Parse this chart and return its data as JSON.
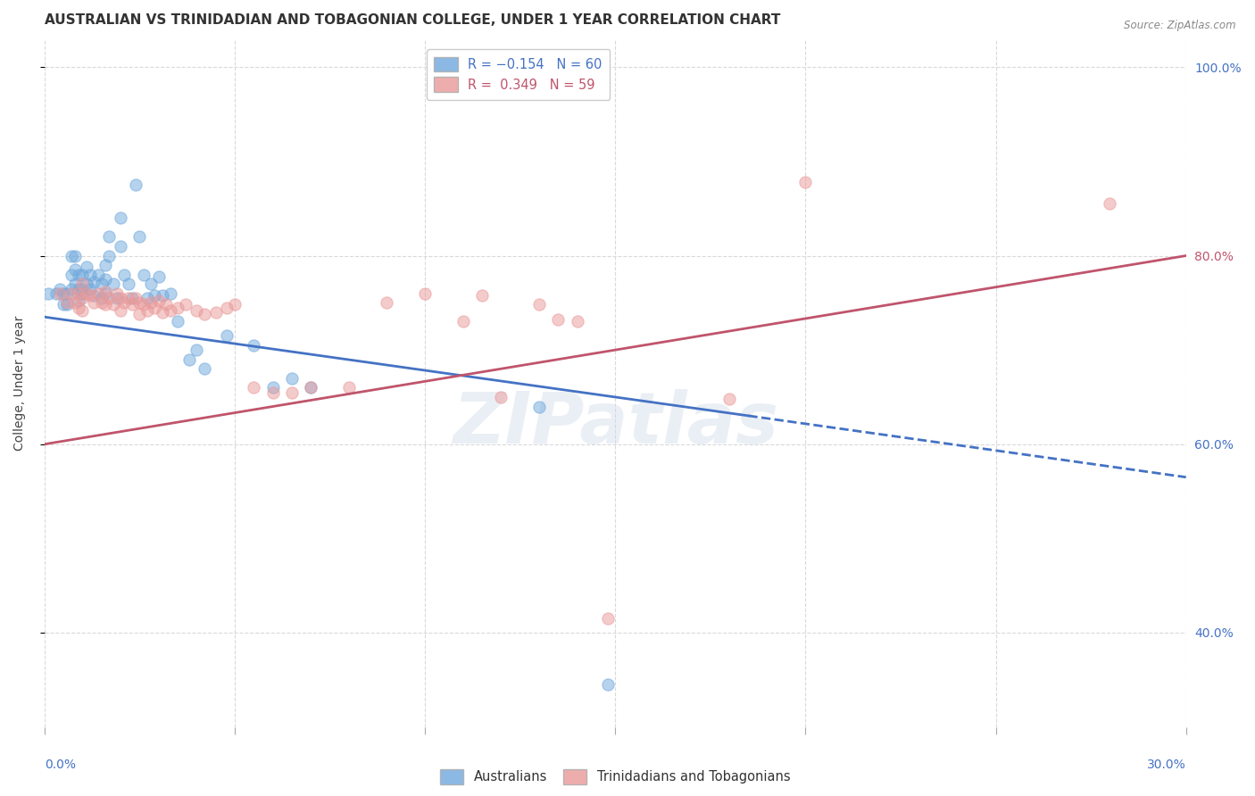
{
  "title": "AUSTRALIAN VS TRINIDADIAN AND TOBAGONIAN COLLEGE, UNDER 1 YEAR CORRELATION CHART",
  "source": "Source: ZipAtlas.com",
  "ylabel": "College, Under 1 year",
  "xlim": [
    0.0,
    0.3
  ],
  "ylim": [
    0.3,
    1.03
  ],
  "yticks": [
    0.4,
    0.6,
    0.8,
    1.0
  ],
  "ytick_labels": [
    "40.0%",
    "60.0%",
    "80.0%",
    "100.0%"
  ],
  "xtick_left_label": "0.0%",
  "xtick_right_label": "30.0%",
  "watermark": "ZIPatlas",
  "blue_color": "#6fa8dc",
  "pink_color": "#ea9999",
  "blue_trend_color": "#4472c4",
  "pink_trend_color": "#c0546c",
  "background_color": "#ffffff",
  "grid_color": "#d9d9d9",
  "title_fontsize": 11,
  "axis_label_fontsize": 10,
  "tick_fontsize": 10,
  "point_size": 90,
  "point_alpha": 0.5,
  "blue_trend_solid_end": 0.185,
  "blue_trend_y_at_0": 0.735,
  "blue_trend_y_at_30": 0.565,
  "pink_trend_y_at_0": 0.6,
  "pink_trend_y_at_30": 0.8,
  "ytick_right_colors": [
    "#4472c4",
    "#4472c4",
    "#c0546c",
    "#4472c4"
  ],
  "blue_points": [
    [
      0.001,
      0.76
    ],
    [
      0.003,
      0.76
    ],
    [
      0.004,
      0.765
    ],
    [
      0.005,
      0.76
    ],
    [
      0.005,
      0.748
    ],
    [
      0.006,
      0.76
    ],
    [
      0.006,
      0.748
    ],
    [
      0.007,
      0.8
    ],
    [
      0.007,
      0.78
    ],
    [
      0.007,
      0.765
    ],
    [
      0.008,
      0.8
    ],
    [
      0.008,
      0.785
    ],
    [
      0.008,
      0.77
    ],
    [
      0.009,
      0.78
    ],
    [
      0.009,
      0.765
    ],
    [
      0.009,
      0.752
    ],
    [
      0.01,
      0.78
    ],
    [
      0.01,
      0.765
    ],
    [
      0.01,
      0.76
    ],
    [
      0.011,
      0.788
    ],
    [
      0.011,
      0.77
    ],
    [
      0.012,
      0.78
    ],
    [
      0.012,
      0.765
    ],
    [
      0.013,
      0.772
    ],
    [
      0.013,
      0.758
    ],
    [
      0.014,
      0.78
    ],
    [
      0.015,
      0.77
    ],
    [
      0.015,
      0.755
    ],
    [
      0.016,
      0.79
    ],
    [
      0.016,
      0.775
    ],
    [
      0.016,
      0.76
    ],
    [
      0.017,
      0.82
    ],
    [
      0.017,
      0.8
    ],
    [
      0.018,
      0.77
    ],
    [
      0.019,
      0.755
    ],
    [
      0.02,
      0.84
    ],
    [
      0.02,
      0.81
    ],
    [
      0.021,
      0.78
    ],
    [
      0.022,
      0.77
    ],
    [
      0.023,
      0.755
    ],
    [
      0.024,
      0.875
    ],
    [
      0.025,
      0.82
    ],
    [
      0.026,
      0.78
    ],
    [
      0.027,
      0.755
    ],
    [
      0.028,
      0.77
    ],
    [
      0.029,
      0.758
    ],
    [
      0.03,
      0.778
    ],
    [
      0.031,
      0.758
    ],
    [
      0.033,
      0.76
    ],
    [
      0.035,
      0.73
    ],
    [
      0.038,
      0.69
    ],
    [
      0.04,
      0.7
    ],
    [
      0.042,
      0.68
    ],
    [
      0.048,
      0.715
    ],
    [
      0.055,
      0.705
    ],
    [
      0.06,
      0.66
    ],
    [
      0.065,
      0.67
    ],
    [
      0.07,
      0.66
    ],
    [
      0.13,
      0.64
    ],
    [
      0.148,
      0.345
    ]
  ],
  "pink_points": [
    [
      0.004,
      0.76
    ],
    [
      0.006,
      0.75
    ],
    [
      0.007,
      0.76
    ],
    [
      0.008,
      0.75
    ],
    [
      0.009,
      0.76
    ],
    [
      0.009,
      0.745
    ],
    [
      0.01,
      0.77
    ],
    [
      0.01,
      0.755
    ],
    [
      0.01,
      0.742
    ],
    [
      0.011,
      0.76
    ],
    [
      0.012,
      0.758
    ],
    [
      0.013,
      0.75
    ],
    [
      0.014,
      0.76
    ],
    [
      0.015,
      0.75
    ],
    [
      0.016,
      0.762
    ],
    [
      0.016,
      0.748
    ],
    [
      0.017,
      0.755
    ],
    [
      0.018,
      0.748
    ],
    [
      0.019,
      0.76
    ],
    [
      0.02,
      0.755
    ],
    [
      0.02,
      0.742
    ],
    [
      0.021,
      0.75
    ],
    [
      0.022,
      0.755
    ],
    [
      0.023,
      0.748
    ],
    [
      0.024,
      0.755
    ],
    [
      0.025,
      0.75
    ],
    [
      0.025,
      0.738
    ],
    [
      0.026,
      0.748
    ],
    [
      0.027,
      0.742
    ],
    [
      0.028,
      0.75
    ],
    [
      0.029,
      0.745
    ],
    [
      0.03,
      0.752
    ],
    [
      0.031,
      0.74
    ],
    [
      0.032,
      0.748
    ],
    [
      0.033,
      0.742
    ],
    [
      0.035,
      0.745
    ],
    [
      0.037,
      0.748
    ],
    [
      0.04,
      0.742
    ],
    [
      0.042,
      0.738
    ],
    [
      0.045,
      0.74
    ],
    [
      0.048,
      0.745
    ],
    [
      0.05,
      0.748
    ],
    [
      0.055,
      0.66
    ],
    [
      0.06,
      0.655
    ],
    [
      0.065,
      0.655
    ],
    [
      0.07,
      0.66
    ],
    [
      0.08,
      0.66
    ],
    [
      0.09,
      0.75
    ],
    [
      0.1,
      0.76
    ],
    [
      0.11,
      0.73
    ],
    [
      0.115,
      0.758
    ],
    [
      0.12,
      0.65
    ],
    [
      0.13,
      0.748
    ],
    [
      0.135,
      0.732
    ],
    [
      0.14,
      0.73
    ],
    [
      0.148,
      0.415
    ],
    [
      0.18,
      0.648
    ],
    [
      0.2,
      0.878
    ],
    [
      0.28,
      0.855
    ]
  ]
}
